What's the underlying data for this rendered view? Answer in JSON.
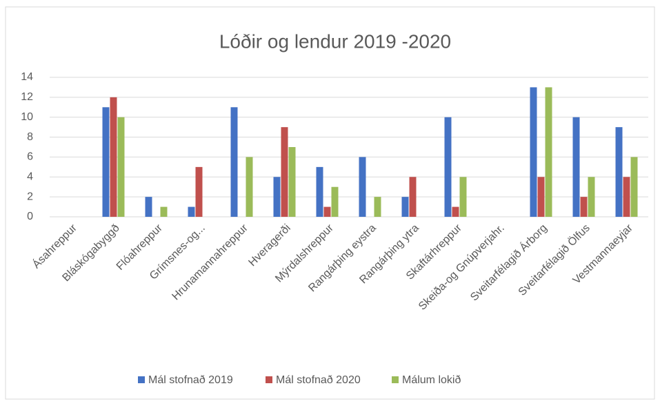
{
  "chart_data": {
    "type": "bar",
    "title": "Lóðir og lendur 2019 -2020",
    "categories": [
      "Ásahreppur",
      "Bláskógabyggð",
      "Flóahreppur",
      "Grímsnes-og...",
      "Hrunamannahreppur",
      "Hveragerði",
      "Mýrdalshreppur",
      "Rangárþing eystra",
      "Rangárþing ytra",
      "Skaftárhreppur",
      "Skeiða-og Gnúpverjahr.",
      "Sveitarfélagið Árborg",
      "Sveitarfélagið Ölfus",
      "Vestmannaeyjar"
    ],
    "series": [
      {
        "name": "Mál stofnað 2019",
        "color": "#4472c4",
        "values": [
          0,
          11,
          2,
          1,
          11,
          4,
          5,
          6,
          2,
          10,
          0,
          13,
          10,
          9
        ]
      },
      {
        "name": "Mál stofnað 2020",
        "color": "#c0504d",
        "values": [
          0,
          12,
          0,
          5,
          0,
          9,
          1,
          0,
          4,
          1,
          0,
          4,
          2,
          4
        ]
      },
      {
        "name": "Málum lokið",
        "color": "#9bbb59",
        "values": [
          0,
          10,
          1,
          0,
          6,
          7,
          3,
          2,
          0,
          4,
          0,
          13,
          4,
          6
        ]
      }
    ],
    "ylim": [
      0,
      14
    ],
    "yticks": [
      0,
      2,
      4,
      6,
      8,
      10,
      12,
      14
    ],
    "grid": true,
    "legend": "bottom"
  }
}
